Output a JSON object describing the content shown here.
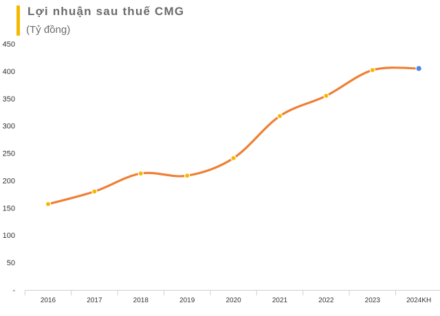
{
  "chart_data": {
    "type": "line",
    "title": "Lợi nhuận sau thuế CMG",
    "subtitle": "(Tỷ đồng)",
    "categories": [
      "2016",
      "2017",
      "2018",
      "2019",
      "2020",
      "2021",
      "2022",
      "2023",
      "2024KH"
    ],
    "values": [
      157,
      180,
      213,
      209,
      241,
      318,
      355,
      402,
      405
    ],
    "ylim": [
      0,
      450
    ],
    "yticks": [
      "-",
      "50",
      "100",
      "150",
      "200",
      "250",
      "300",
      "350",
      "400",
      "450"
    ],
    "grid": false,
    "legend": "none",
    "colors": {
      "line": "#ef7f34",
      "marker": "#f5b800",
      "last_marker": "#4a86e8",
      "accent": "#f5b800",
      "text": "#6b6b6b"
    }
  }
}
